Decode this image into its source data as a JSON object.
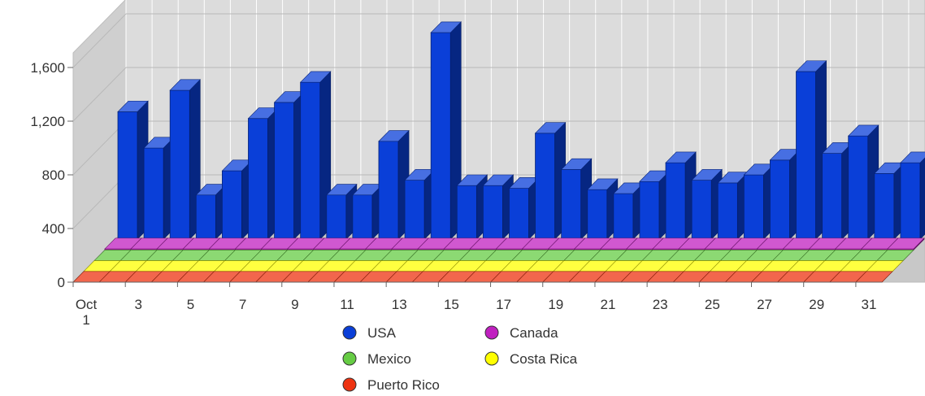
{
  "chart_data": {
    "type": "bar",
    "style": "3d-stacked-depth",
    "categories": [
      "Oct 1",
      "2",
      "3",
      "4",
      "5",
      "6",
      "7",
      "8",
      "9",
      "10",
      "11",
      "12",
      "13",
      "14",
      "15",
      "16",
      "17",
      "18",
      "19",
      "20",
      "21",
      "22",
      "23",
      "24",
      "25",
      "26",
      "27",
      "28",
      "29",
      "30",
      "31"
    ],
    "x_tick_labels": [
      {
        "index": 0,
        "lines": [
          "Oct",
          "1"
        ]
      },
      {
        "index": 2,
        "lines": [
          "3"
        ]
      },
      {
        "index": 4,
        "lines": [
          "5"
        ]
      },
      {
        "index": 6,
        "lines": [
          "7"
        ]
      },
      {
        "index": 8,
        "lines": [
          "9"
        ]
      },
      {
        "index": 10,
        "lines": [
          "11"
        ]
      },
      {
        "index": 12,
        "lines": [
          "13"
        ]
      },
      {
        "index": 14,
        "lines": [
          "15"
        ]
      },
      {
        "index": 16,
        "lines": [
          "17"
        ]
      },
      {
        "index": 18,
        "lines": [
          "19"
        ]
      },
      {
        "index": 20,
        "lines": [
          "21"
        ]
      },
      {
        "index": 22,
        "lines": [
          "23"
        ]
      },
      {
        "index": 24,
        "lines": [
          "25"
        ]
      },
      {
        "index": 26,
        "lines": [
          "27"
        ]
      },
      {
        "index": 28,
        "lines": [
          "29"
        ]
      },
      {
        "index": 30,
        "lines": [
          "31"
        ]
      }
    ],
    "y_ticks": [
      {
        "value": 0,
        "label": "0"
      },
      {
        "value": 400,
        "label": "400"
      },
      {
        "value": 800,
        "label": "800"
      },
      {
        "value": 1200,
        "label": "1,200"
      },
      {
        "value": 1600,
        "label": "1,600"
      }
    ],
    "ylim": [
      0,
      1600
    ],
    "grid": true,
    "legend_position": "bottom",
    "series": [
      {
        "name": "USA",
        "color": "#0a3fd8",
        "values": [
          950,
          680,
          1110,
          330,
          510,
          900,
          1020,
          1170,
          330,
          330,
          730,
          440,
          1540,
          400,
          400,
          380,
          790,
          520,
          370,
          340,
          430,
          570,
          440,
          420,
          480,
          590,
          1250,
          640,
          770,
          490,
          570
        ]
      },
      {
        "name": "Canada",
        "color": "#c020c0",
        "values": [
          8,
          8,
          8,
          8,
          8,
          8,
          8,
          8,
          8,
          8,
          8,
          8,
          8,
          8,
          8,
          8,
          8,
          8,
          8,
          8,
          8,
          8,
          8,
          8,
          8,
          8,
          8,
          8,
          8,
          8,
          8
        ]
      },
      {
        "name": "Mexico",
        "color": "#66cc44",
        "values": [
          0,
          0,
          0,
          0,
          0,
          0,
          0,
          0,
          0,
          0,
          0,
          0,
          0,
          0,
          0,
          0,
          0,
          0,
          0,
          0,
          0,
          0,
          0,
          0,
          0,
          0,
          0,
          0,
          0,
          0,
          0
        ]
      },
      {
        "name": "Costa Rica",
        "color": "#ffff00",
        "values": [
          0,
          0,
          0,
          0,
          0,
          0,
          0,
          0,
          0,
          0,
          0,
          0,
          0,
          0,
          0,
          0,
          0,
          0,
          0,
          0,
          0,
          0,
          0,
          0,
          0,
          0,
          0,
          0,
          0,
          0,
          0
        ]
      },
      {
        "name": "Puerto Rico",
        "color": "#ee3311",
        "values": [
          0,
          0,
          0,
          0,
          0,
          0,
          0,
          0,
          0,
          0,
          0,
          0,
          0,
          0,
          0,
          0,
          0,
          0,
          0,
          0,
          0,
          0,
          0,
          0,
          0,
          0,
          0,
          0,
          0,
          0,
          0
        ]
      }
    ]
  }
}
